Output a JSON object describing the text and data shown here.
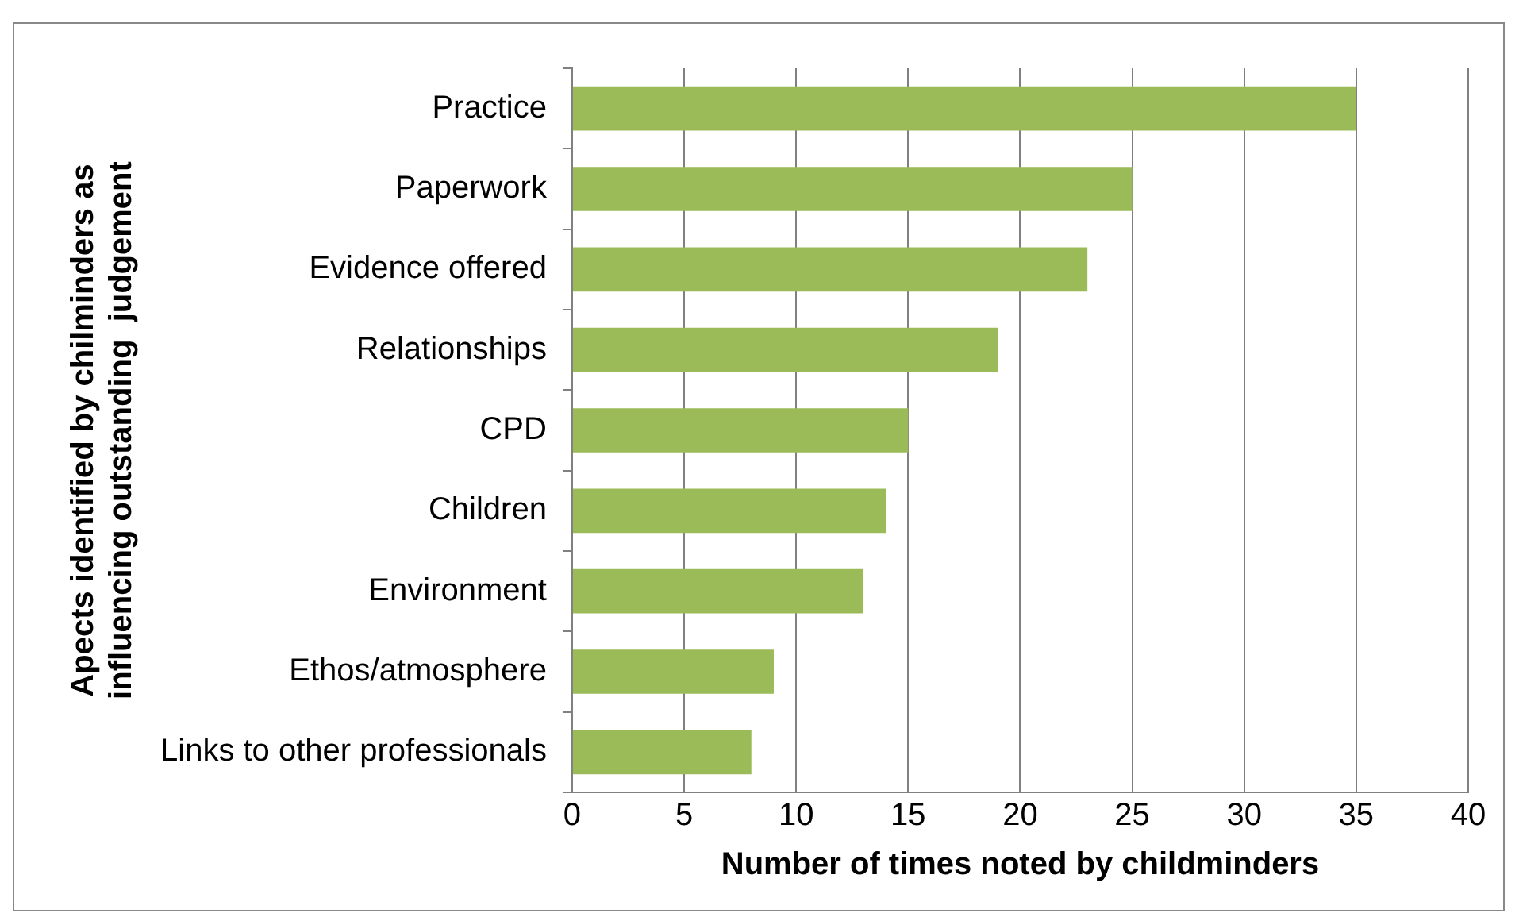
{
  "chart_data": {
    "type": "bar",
    "orientation": "horizontal",
    "xlabel": "Number of times noted by childminders",
    "ylabel": "Apects identified by chilminders as\ninfluencing outstanding  judgement",
    "categories": [
      "Practice",
      "Paperwork",
      "Evidence offered",
      "Relationships",
      "CPD",
      "Children",
      "Environment",
      "Ethos/atmosphere",
      "Links to other professionals"
    ],
    "values": [
      35,
      25,
      23,
      19,
      15,
      14,
      13,
      9,
      8
    ],
    "color": "#9bbb59",
    "xlim": [
      0,
      40
    ],
    "xticks": [
      0,
      5,
      10,
      15,
      20,
      25,
      30,
      35,
      40
    ],
    "grid": "x"
  }
}
